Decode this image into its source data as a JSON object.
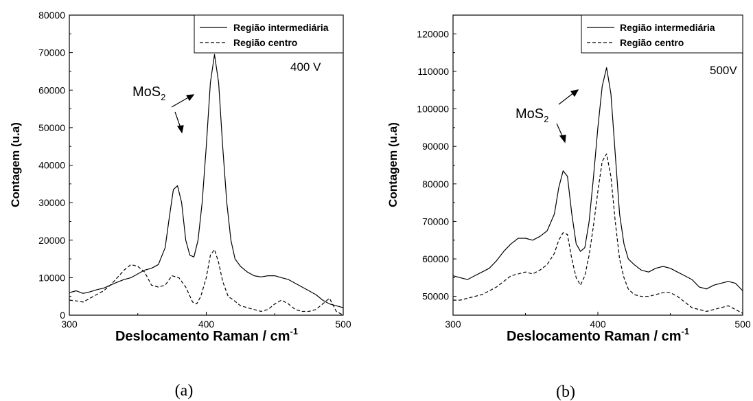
{
  "chart_data": [
    {
      "type": "line",
      "panel_caption": "(a)",
      "annotation": "400 V",
      "peak_label": {
        "base": "MoS",
        "subscript": "2"
      },
      "xlabel": "Deslocamento Raman / cm",
      "xlabel_superscript": "-1",
      "ylabel": "Contagem (u.a)",
      "xlim": [
        300,
        500
      ],
      "ylim": [
        0,
        80000
      ],
      "xticks": [
        300,
        400,
        500
      ],
      "yticks": [
        0,
        10000,
        20000,
        30000,
        40000,
        50000,
        60000,
        70000,
        80000
      ],
      "grid": false,
      "legend_position": "top-right",
      "series": [
        {
          "name": "Região intermediária",
          "style": "solid",
          "color": "#000000",
          "x": [
            300,
            305,
            310,
            315,
            320,
            325,
            330,
            335,
            340,
            345,
            350,
            355,
            360,
            365,
            370,
            373,
            376,
            379,
            382,
            385,
            388,
            391,
            394,
            397,
            400,
            403,
            406,
            409,
            412,
            415,
            418,
            421,
            425,
            430,
            435,
            440,
            445,
            450,
            455,
            460,
            465,
            470,
            475,
            480,
            485,
            490,
            495,
            500
          ],
          "y": [
            6000,
            6500,
            5800,
            6200,
            6800,
            7200,
            8000,
            8800,
            9500,
            10000,
            11000,
            12000,
            12500,
            13500,
            18000,
            26000,
            33500,
            34500,
            30000,
            20000,
            16000,
            15500,
            20000,
            30000,
            45000,
            62000,
            69500,
            62000,
            45000,
            30000,
            20000,
            15000,
            13000,
            11500,
            10500,
            10200,
            10500,
            10500,
            10000,
            9500,
            8500,
            7500,
            6500,
            5500,
            4000,
            3000,
            2500,
            2000
          ]
        },
        {
          "name": "Região centro",
          "style": "dashed",
          "color": "#000000",
          "x": [
            300,
            305,
            310,
            315,
            320,
            325,
            330,
            335,
            340,
            345,
            350,
            355,
            360,
            365,
            370,
            375,
            380,
            385,
            390,
            393,
            396,
            400,
            403,
            406,
            409,
            412,
            416,
            420,
            425,
            430,
            435,
            440,
            445,
            450,
            455,
            460,
            465,
            470,
            475,
            480,
            485,
            490,
            495,
            500
          ],
          "y": [
            4000,
            3800,
            3500,
            4500,
            5500,
            6500,
            8000,
            10000,
            12000,
            13500,
            13000,
            11500,
            8000,
            7500,
            8000,
            10500,
            10000,
            7500,
            3500,
            3000,
            5000,
            10000,
            16000,
            17500,
            14000,
            9000,
            5000,
            4000,
            2500,
            2000,
            1500,
            1000,
            1500,
            3000,
            4000,
            3000,
            1500,
            1000,
            1000,
            1500,
            3000,
            4500,
            1000,
            0
          ]
        }
      ]
    },
    {
      "type": "line",
      "panel_caption": "(b)",
      "annotation": "500V",
      "peak_label": {
        "base": "MoS",
        "subscript": "2"
      },
      "xlabel": "Deslocamento Raman / cm",
      "xlabel_superscript": "-1",
      "ylabel": "Contagem (u.a)",
      "xlim": [
        300,
        500
      ],
      "ylim": [
        45000,
        125000
      ],
      "xticks": [
        300,
        400,
        500
      ],
      "yticks": [
        50000,
        60000,
        70000,
        80000,
        90000,
        100000,
        110000,
        120000
      ],
      "grid": false,
      "legend_position": "top-right",
      "series": [
        {
          "name": "Região intermediária",
          "style": "solid",
          "color": "#000000",
          "x": [
            300,
            305,
            310,
            315,
            320,
            325,
            330,
            335,
            340,
            345,
            350,
            355,
            360,
            365,
            370,
            373,
            376,
            379,
            382,
            385,
            388,
            391,
            394,
            397,
            400,
            403,
            406,
            409,
            412,
            415,
            418,
            421,
            425,
            430,
            435,
            440,
            445,
            450,
            455,
            460,
            465,
            470,
            475,
            480,
            485,
            490,
            495,
            500
          ],
          "y": [
            55500,
            55000,
            54500,
            55500,
            56500,
            57500,
            59500,
            62000,
            64000,
            65500,
            65500,
            65000,
            66000,
            67500,
            72000,
            79000,
            83500,
            82000,
            72000,
            64000,
            62000,
            63000,
            70000,
            82000,
            95000,
            106000,
            111000,
            104000,
            88000,
            72000,
            64000,
            60000,
            58500,
            57000,
            56500,
            57500,
            58000,
            57500,
            56500,
            55500,
            54500,
            52500,
            52000,
            53000,
            53500,
            54000,
            53500,
            51500
          ]
        },
        {
          "name": "Região centro",
          "style": "dashed",
          "color": "#000000",
          "x": [
            300,
            305,
            310,
            315,
            320,
            325,
            330,
            335,
            340,
            345,
            350,
            355,
            360,
            365,
            370,
            373,
            376,
            379,
            382,
            385,
            388,
            391,
            394,
            397,
            400,
            403,
            406,
            409,
            412,
            415,
            418,
            421,
            425,
            430,
            435,
            440,
            445,
            450,
            455,
            460,
            465,
            470,
            475,
            480,
            485,
            490,
            495,
            500
          ],
          "y": [
            49000,
            49000,
            49500,
            50000,
            50500,
            51500,
            52500,
            54000,
            55500,
            56000,
            56500,
            56000,
            57000,
            58500,
            61500,
            65000,
            67000,
            66500,
            60000,
            55000,
            53000,
            55500,
            61000,
            69000,
            78000,
            86000,
            88000,
            82000,
            70000,
            60000,
            55000,
            52000,
            50500,
            50000,
            50000,
            50500,
            51000,
            51000,
            50000,
            48500,
            47000,
            46500,
            46000,
            46500,
            47000,
            47500,
            46500,
            45500
          ]
        }
      ]
    }
  ]
}
